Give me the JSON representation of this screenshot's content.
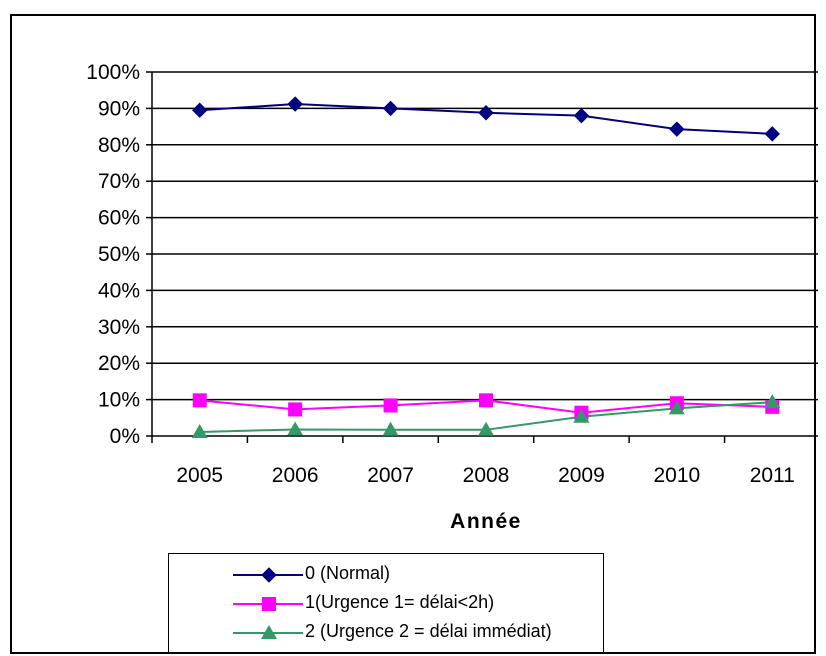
{
  "chart_data": {
    "type": "line",
    "categories": [
      "2005",
      "2006",
      "2007",
      "2008",
      "2009",
      "2010",
      "2011"
    ],
    "xlabel": "Année",
    "ylabel": "",
    "ylim": [
      0,
      100
    ],
    "y_ticks": [
      "0%",
      "10%",
      "20%",
      "30%",
      "40%",
      "50%",
      "60%",
      "70%",
      "80%",
      "90%",
      "100%"
    ],
    "grid": "horizontal",
    "legend_position": "bottom",
    "series": [
      {
        "name": "0 (Normal)",
        "color": "#000080",
        "marker": "diamond",
        "values": [
          89.5,
          91.2,
          90.0,
          88.8,
          88.0,
          84.3,
          83.0
        ]
      },
      {
        "name": "1(Urgence 1= délai<2h)",
        "color": "#ff00ff",
        "marker": "square",
        "values": [
          9.8,
          7.3,
          8.4,
          9.8,
          6.4,
          9.0,
          8.0
        ]
      },
      {
        "name": "2 (Urgence 2 = délai immédiat)",
        "color": "#339966",
        "marker": "triangle",
        "values": [
          1.1,
          1.8,
          1.7,
          1.7,
          5.3,
          7.6,
          9.3
        ]
      }
    ]
  }
}
